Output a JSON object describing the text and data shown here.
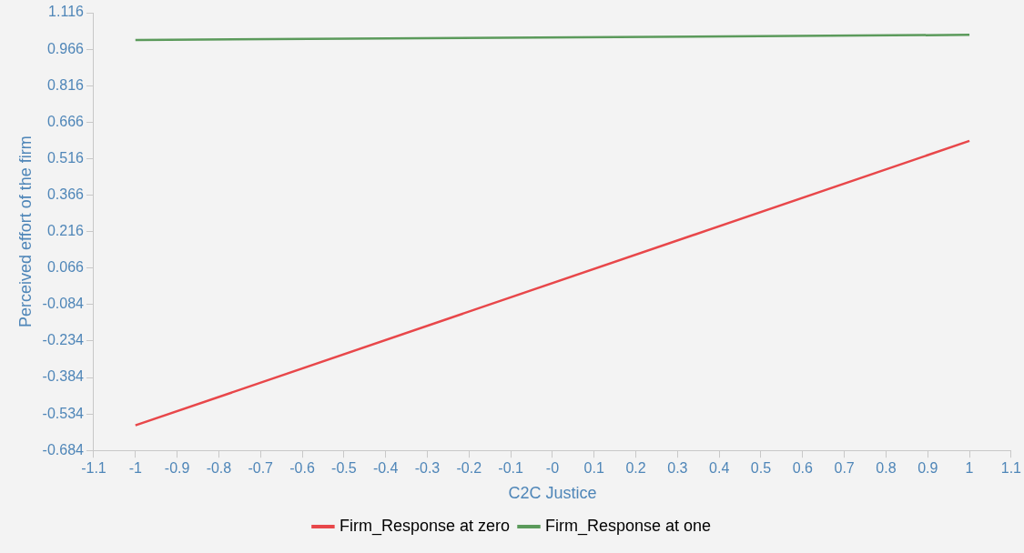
{
  "chart_data": {
    "type": "line",
    "xlabel": "C2C Justice",
    "ylabel": "Perceived effort of the firm",
    "x": [
      -1,
      1
    ],
    "series": [
      {
        "name": "Firm_Response at zero",
        "color": "#e8474a",
        "values": [
          -0.581,
          0.589
        ]
      },
      {
        "name": "Firm_Response at one",
        "color": "#5b9a5b",
        "values": [
          1.004,
          1.025
        ]
      }
    ],
    "xlim": [
      -1.1,
      1.1
    ],
    "xticks": [
      -1.1,
      -1,
      -0.9,
      -0.8,
      -0.7,
      -0.6,
      -0.5,
      -0.4,
      -0.3,
      -0.2,
      -0.1,
      {
        "value": 0,
        "label": "-0"
      },
      0.1,
      0.2,
      0.3,
      0.4,
      0.5,
      0.6,
      0.7,
      0.8,
      0.9,
      1,
      1.1
    ],
    "ylim": [
      -0.684,
      1.116
    ],
    "yticks": [
      -0.684,
      -0.534,
      -0.384,
      -0.234,
      -0.084,
      0.066,
      0.216,
      0.366,
      0.516,
      0.666,
      0.816,
      0.966,
      1.116
    ],
    "grid": false,
    "legend": "bottom",
    "marker": "none",
    "line_style": "solid"
  }
}
